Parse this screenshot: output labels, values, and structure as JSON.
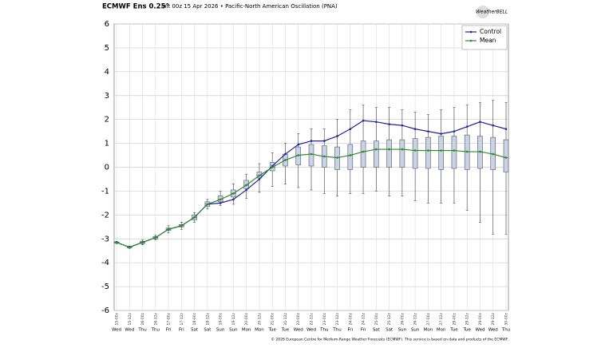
{
  "chart_data": {
    "type": "box",
    "title": "ECMWF Ens 0.25°",
    "subtitle": "Init 00z 15 Apr 2026 • Pacific-North American Oscillation (PNA)",
    "logo": "WeatherBELL",
    "footer": "© 2026 European Centre for Medium-Range Weather Forecasts (ECMWF). This service is based on data and products of the ECMWF.",
    "categories": [
      "15-00z",
      "15-12z",
      "16-00z",
      "16-12z",
      "17-00z",
      "17-12z",
      "18-00z",
      "18-12z",
      "19-00z",
      "19-12z",
      "20-00z",
      "20-12z",
      "21-00z",
      "21-12z",
      "22-00z",
      "22-12z",
      "23-00z",
      "23-12z",
      "24-00z",
      "24-12z",
      "25-00z",
      "25-12z",
      "26-00z",
      "26-12z",
      "27-00z",
      "27-12z",
      "28-00z",
      "28-12z",
      "29-00z",
      "29-12z",
      "30-00z"
    ],
    "weekdays": [
      "Wed",
      "Wed",
      "Thu",
      "Thu",
      "Fri",
      "Fri",
      "Sat",
      "Sat",
      "Sun",
      "Sun",
      "Mon",
      "Mon",
      "Tue",
      "Tue",
      "Wed",
      "Wed",
      "Thu",
      "Thu",
      "Fri",
      "Fri",
      "Sat",
      "Sat",
      "Sun",
      "Sun",
      "Mon",
      "Mon",
      "Tue",
      "Tue",
      "Wed",
      "Wed",
      "Thu"
    ],
    "boxes": {
      "min": [
        -3.2,
        -3.4,
        -3.25,
        -3.05,
        -2.75,
        -2.6,
        -2.3,
        -1.75,
        -1.6,
        -1.55,
        -1.3,
        -1.05,
        -0.8,
        -0.7,
        -0.85,
        -0.95,
        -1.1,
        -1.2,
        -1.1,
        -1.1,
        -1.0,
        -1.2,
        -1.2,
        -1.4,
        -1.5,
        -1.5,
        -1.5,
        -1.8,
        -2.3,
        -2.8,
        -2.8
      ],
      "q1": [
        -3.17,
        -3.37,
        -3.2,
        -3.0,
        -2.65,
        -2.5,
        -2.2,
        -1.65,
        -1.45,
        -1.25,
        -0.9,
        -0.45,
        -0.15,
        0.05,
        0.1,
        0.05,
        0.0,
        -0.1,
        -0.1,
        0.0,
        0.0,
        0.0,
        0.0,
        -0.05,
        -0.05,
        -0.1,
        -0.05,
        -0.1,
        -0.05,
        -0.1,
        -0.2
      ],
      "median": [
        -3.15,
        -3.35,
        -3.15,
        -2.95,
        -2.6,
        -2.45,
        -2.1,
        -1.55,
        -1.35,
        -1.1,
        -0.75,
        -0.35,
        0.0,
        0.3,
        0.5,
        0.55,
        0.45,
        0.4,
        0.5,
        0.65,
        0.75,
        0.75,
        0.75,
        0.7,
        0.7,
        0.7,
        0.7,
        0.65,
        0.65,
        0.55,
        0.4
      ],
      "q3": [
        -3.13,
        -3.33,
        -3.1,
        -2.9,
        -2.55,
        -2.4,
        -2.0,
        -1.45,
        -1.2,
        -0.95,
        -0.55,
        -0.2,
        0.2,
        0.55,
        0.85,
        0.95,
        0.9,
        0.85,
        0.95,
        1.1,
        1.1,
        1.15,
        1.15,
        1.2,
        1.25,
        1.3,
        1.3,
        1.35,
        1.3,
        1.25,
        1.15
      ],
      "max": [
        -3.1,
        -3.3,
        -3.05,
        -2.85,
        -2.45,
        -2.3,
        -1.9,
        -1.35,
        -1.0,
        -0.7,
        -0.3,
        0.15,
        0.6,
        1.0,
        1.4,
        1.6,
        1.6,
        2.0,
        2.4,
        2.6,
        2.5,
        2.5,
        2.4,
        2.3,
        2.2,
        2.4,
        2.5,
        2.6,
        2.7,
        2.8,
        2.7
      ],
      "color": "#c9d3e3"
    },
    "series": [
      {
        "name": "Control",
        "color": "#22229a",
        "values": [
          -3.15,
          -3.35,
          -3.15,
          -2.95,
          -2.6,
          -2.45,
          -2.1,
          -1.55,
          -1.5,
          -1.35,
          -0.95,
          -0.5,
          0.05,
          0.55,
          0.95,
          1.1,
          1.1,
          1.3,
          1.6,
          1.95,
          1.9,
          1.8,
          1.75,
          1.6,
          1.5,
          1.4,
          1.5,
          1.7,
          1.9,
          1.75,
          1.6
        ]
      },
      {
        "name": "Mean",
        "color": "#2b8a2b",
        "values": [
          -3.15,
          -3.35,
          -3.15,
          -2.95,
          -2.6,
          -2.45,
          -2.1,
          -1.55,
          -1.35,
          -1.1,
          -0.75,
          -0.35,
          0.0,
          0.3,
          0.5,
          0.55,
          0.45,
          0.4,
          0.5,
          0.65,
          0.75,
          0.75,
          0.75,
          0.7,
          0.7,
          0.7,
          0.7,
          0.65,
          0.65,
          0.55,
          0.4
        ]
      }
    ],
    "ylim": [
      -6,
      6
    ],
    "yticks": [
      -6,
      -5,
      -4,
      -3,
      -2,
      -1,
      0,
      1,
      2,
      3,
      4,
      5,
      6
    ],
    "grid": true,
    "legend": "top-right"
  }
}
